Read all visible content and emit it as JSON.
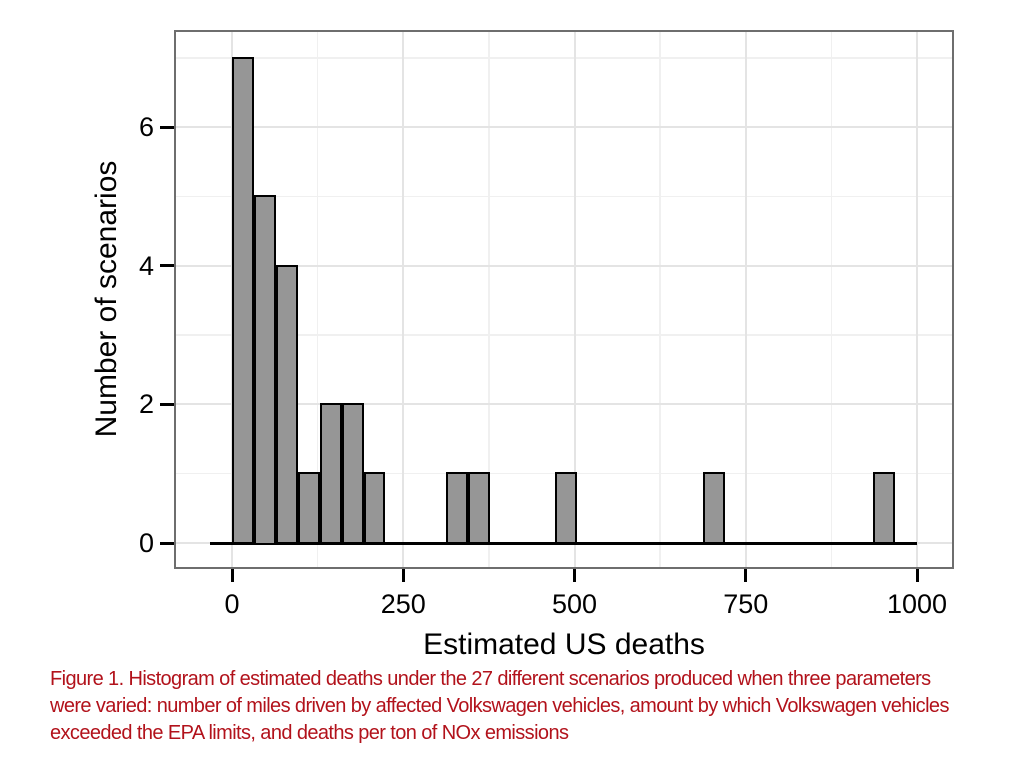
{
  "chart_data": {
    "type": "histogram",
    "title": "",
    "xlabel": "Estimated US deaths",
    "ylabel": "Number of scenarios",
    "total_scenarios": 27,
    "bin_width": 32,
    "bins": [
      {
        "start": 0,
        "count": 7
      },
      {
        "start": 32,
        "count": 5
      },
      {
        "start": 64,
        "count": 4
      },
      {
        "start": 96,
        "count": 1
      },
      {
        "start": 128,
        "count": 2
      },
      {
        "start": 160,
        "count": 2
      },
      {
        "start": 192,
        "count": 1
      },
      {
        "start": 312,
        "count": 1
      },
      {
        "start": 344,
        "count": 1
      },
      {
        "start": 472,
        "count": 1
      },
      {
        "start": 688,
        "count": 1
      },
      {
        "start": 936,
        "count": 1
      }
    ],
    "baseline_extent": [
      -32,
      1000
    ],
    "x_ticks": [
      0,
      250,
      500,
      750,
      1000
    ],
    "y_ticks": [
      0,
      2,
      4,
      6
    ],
    "x_minor_gridlines": [
      125,
      375,
      625,
      875
    ],
    "y_minor_gridlines": [
      1,
      3,
      5,
      7
    ],
    "x_domain": [
      -82,
      1053
    ],
    "y_domain": [
      -0.46,
      7.37
    ],
    "grid": true,
    "legend": "none",
    "colors": {
      "bar_fill": "#969696",
      "bar_border": "#000000",
      "baseline": "#000000",
      "panel_border": "#6e6e6e",
      "grid_major": "#e4e4e4",
      "grid_minor": "#f0f0f0",
      "axis_text": "#000000"
    }
  },
  "caption": {
    "color": "#b2121b",
    "lines": [
      "Figure 1. Histogram of estimated deaths under the 27 different scenarios produced when three parameters",
      "were varied: number of miles driven by affected Volkswagen vehicles, amount by which Volkswagen vehicles",
      "exceeded the EPA limits, and deaths per ton of NOx emissions"
    ],
    "text": "Figure 1. Histogram of estimated deaths under the 27 different scenarios produced when three parameters were varied: number of miles driven by affected Volkswagen vehicles, amount by which Volkswagen vehicles exceeded the EPA limits, and deaths per ton of NOx emissions"
  }
}
